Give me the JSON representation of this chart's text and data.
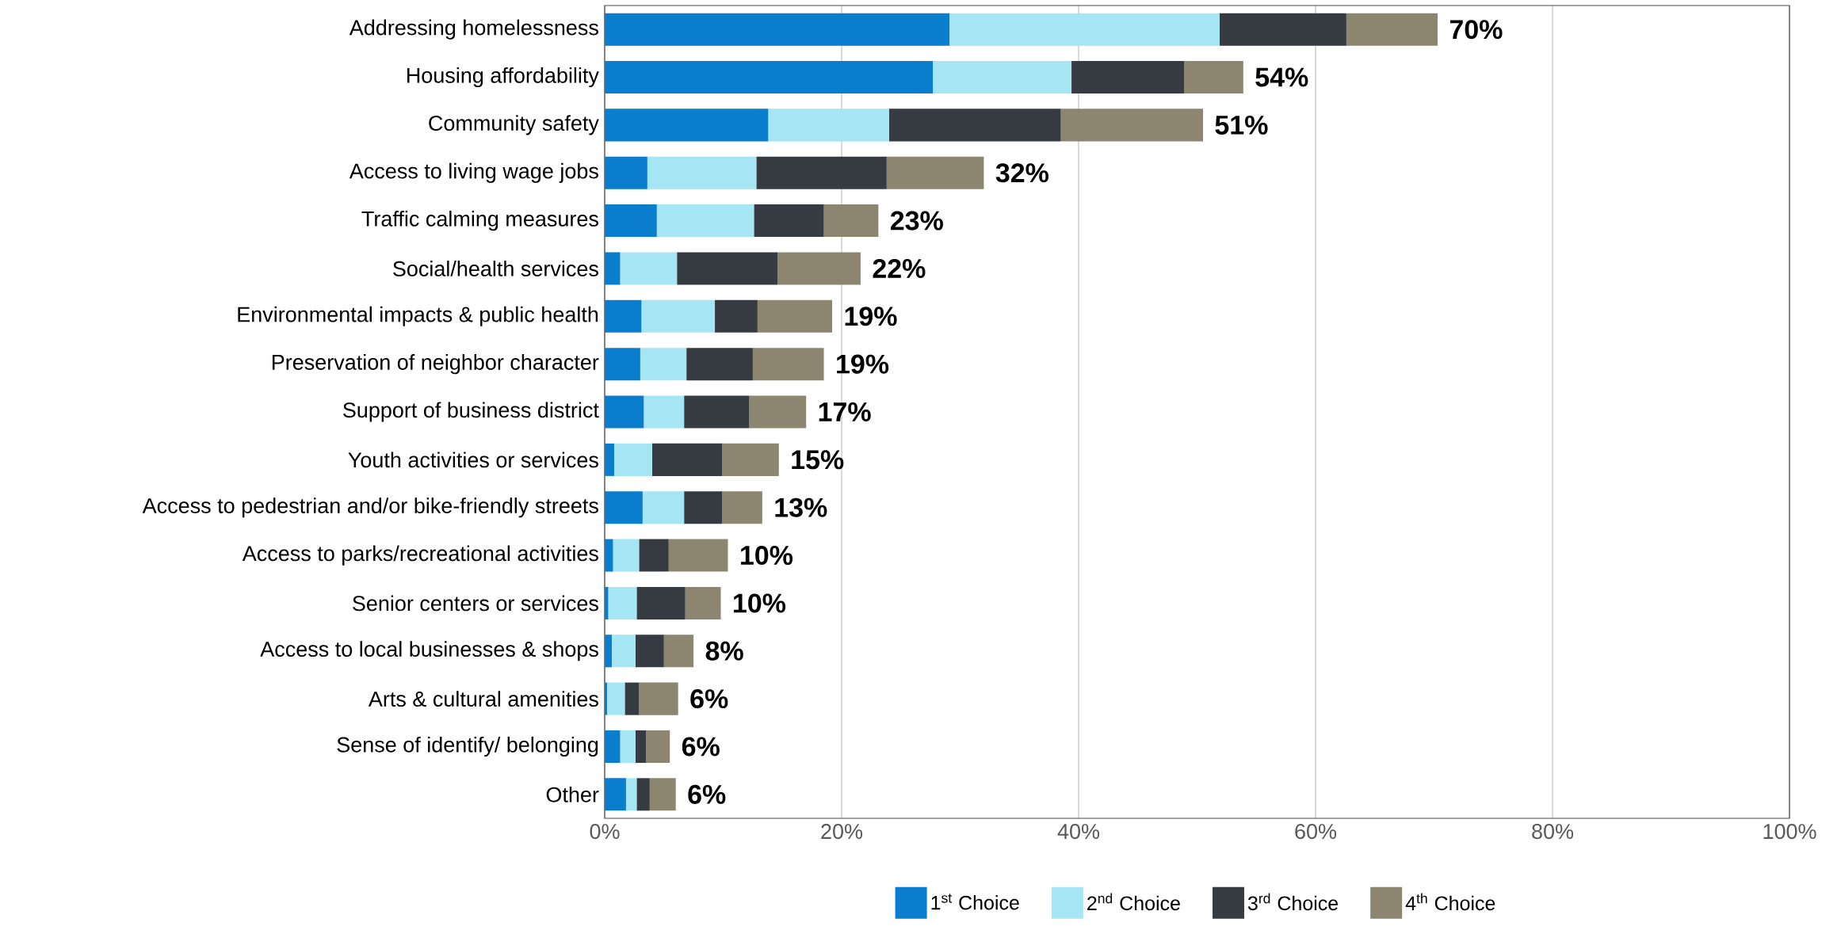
{
  "chart_data": {
    "type": "bar",
    "orientation": "horizontal",
    "stacked": true,
    "categories": [
      "Addressing homelessness",
      "Housing affordability",
      "Community safety",
      "Access to living wage jobs",
      "Traffic calming measures",
      "Social/health services",
      "Environmental impacts & public health",
      "Preservation of neighbor character",
      "Support of business district",
      "Youth activities or services",
      "Access to pedestrian and/or bike-friendly streets",
      "Access to parks/recreational activities",
      "Senior centers or services",
      "Access to local businesses & shops",
      "Arts & cultural amenities",
      "Sense of identify/ belonging",
      "Other"
    ],
    "series": [
      {
        "name": "1$^{st}$ Choice",
        "color": "#0a7dcc",
        "values": [
          29.1,
          27.7,
          13.8,
          3.6,
          4.4,
          1.3,
          3.1,
          3.0,
          3.3,
          0.8,
          3.2,
          0.7,
          0.3,
          0.6,
          0.2,
          1.3,
          1.8
        ]
      },
      {
        "name": "2$^{nd}$ Choice",
        "color": "#a6e5f4",
        "values": [
          22.8,
          11.7,
          10.2,
          9.2,
          8.2,
          4.8,
          6.2,
          3.9,
          3.4,
          3.2,
          3.5,
          2.2,
          2.4,
          2.0,
          1.5,
          1.3,
          0.9
        ]
      },
      {
        "name": "3$^{rd}$ Choice",
        "color": "#363a41",
        "values": [
          10.7,
          9.5,
          14.5,
          11.0,
          5.9,
          8.5,
          3.6,
          5.6,
          5.5,
          5.9,
          3.2,
          2.5,
          4.1,
          2.4,
          1.2,
          0.9,
          1.1
        ]
      },
      {
        "name": "4$^{th}$ Choice",
        "color": "#8c8670",
        "values": [
          7.7,
          5.0,
          12.0,
          8.2,
          4.6,
          7.0,
          6.3,
          6.0,
          4.8,
          4.8,
          3.4,
          5.0,
          3.0,
          2.5,
          3.3,
          2.0,
          2.2
        ]
      }
    ],
    "totals": [
      "70%",
      "54%",
      "51%",
      "32%",
      "23%",
      "22%",
      "19%",
      "19%",
      "17%",
      "15%",
      "13%",
      "10%",
      "10%",
      "8%",
      "6%",
      "6%",
      "6%"
    ],
    "xlim": [
      0,
      100
    ],
    "xticks": [
      {
        "value": 0,
        "label": "0%"
      },
      {
        "value": 20,
        "label": "20%"
      },
      {
        "value": 40,
        "label": "40%"
      },
      {
        "value": 60,
        "label": "60%"
      },
      {
        "value": 80,
        "label": "80%"
      },
      {
        "value": 100,
        "label": "100%"
      }
    ],
    "grid": "x",
    "legend": "bottom"
  }
}
